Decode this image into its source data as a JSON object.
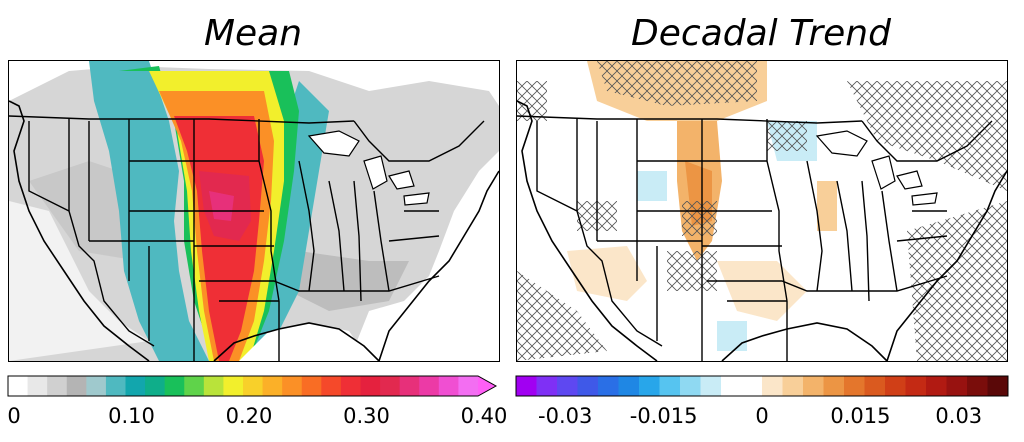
{
  "left_panel": {
    "title": "Mean",
    "colorbar": {
      "ticks": [
        "0",
        "0.10",
        "0.20",
        "0.30",
        "0.40"
      ],
      "tick_values": [
        0,
        0.1,
        0.2,
        0.3,
        0.4
      ],
      "range": [
        0,
        0.4
      ],
      "extend": "max",
      "colors": [
        "#ffffff",
        "#e8e8e8",
        "#d0d0d0",
        "#b4b4b4",
        "#9fc9cd",
        "#4fb9c0",
        "#12a6ad",
        "#0fae8a",
        "#19c05a",
        "#5fd34a",
        "#b9e33a",
        "#f2ef2c",
        "#f8d02a",
        "#fbb028",
        "#fb9026",
        "#f96d24",
        "#f5492a",
        "#ef2f36",
        "#e5213e",
        "#e2294f",
        "#e7307a",
        "#ec3aa6",
        "#f04fd2",
        "#f36ef2"
      ],
      "arrow_color": "#ff5ff6"
    }
  },
  "right_panel": {
    "title": "Decadal Trend",
    "colorbar": {
      "ticks": [
        "-0.03",
        "-0.015",
        "0",
        "0.015",
        "0.03"
      ],
      "tick_values": [
        -0.03,
        -0.015,
        0,
        0.015,
        0.03
      ],
      "range": [
        -0.0375,
        0.0375
      ],
      "colors": [
        "#a100f2",
        "#7f30f5",
        "#5e48f1",
        "#3f59e8",
        "#2a6fe6",
        "#1f87e4",
        "#28a6ea",
        "#56c4f0",
        "#8fd9f2",
        "#c9ecf6",
        "#ffffff",
        "#ffffff",
        "#fbe6c9",
        "#f8cf99",
        "#f3b36a",
        "#ec9544",
        "#e4762c",
        "#da5a1f",
        "#d03f17",
        "#c42a14",
        "#b11a12",
        "#981210",
        "#7a0d0b",
        "#5a0808"
      ]
    }
  }
}
